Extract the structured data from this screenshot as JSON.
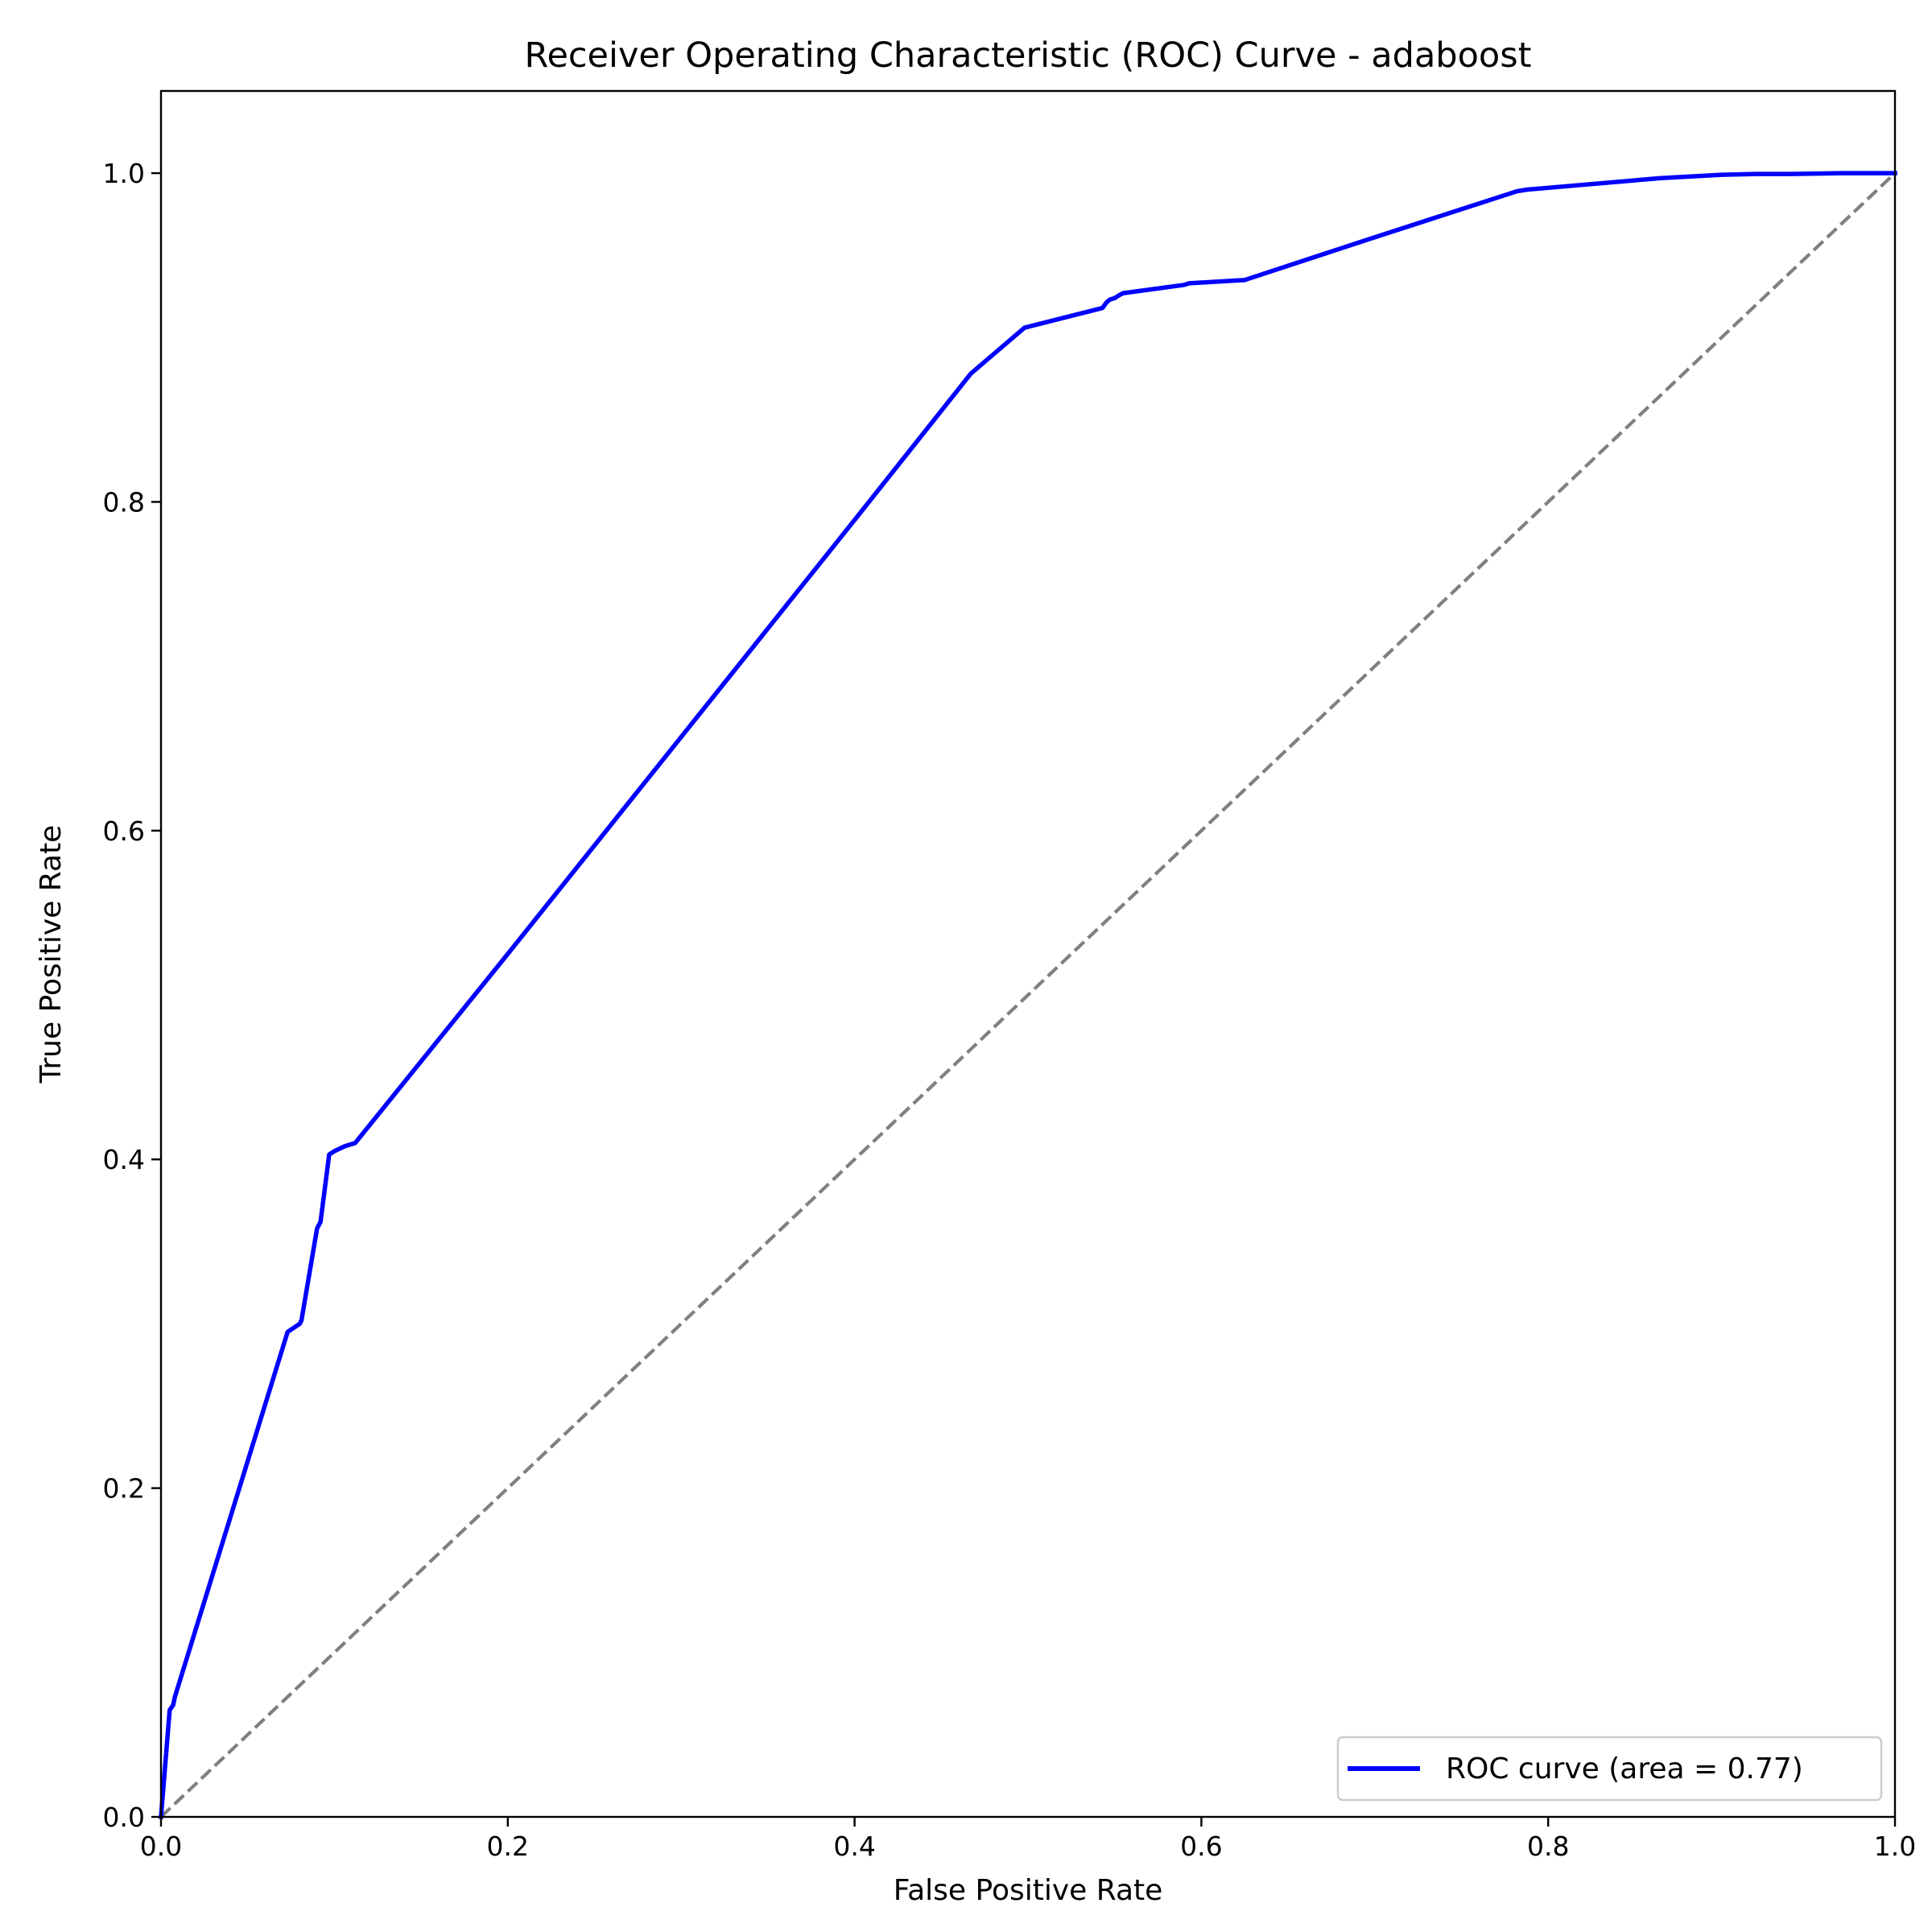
{
  "chart_data": {
    "type": "line",
    "title": "Receiver Operating Characteristic (ROC) Curve - adaboost",
    "xlabel": "False Positive Rate",
    "ylabel": "True Positive Rate",
    "xlim": [
      0.0,
      1.0
    ],
    "ylim": [
      0.0,
      1.05
    ],
    "xticks": [
      0.0,
      0.2,
      0.4,
      0.6,
      0.8,
      1.0
    ],
    "yticks": [
      0.0,
      0.2,
      0.4,
      0.6,
      0.8,
      1.0
    ],
    "xtick_labels": [
      "0.0",
      "0.2",
      "0.4",
      "0.6",
      "0.8",
      "1.0"
    ],
    "ytick_labels": [
      "0.0",
      "0.2",
      "0.4",
      "0.6",
      "0.8",
      "1.0"
    ],
    "grid": false,
    "legend_position": "lower-right",
    "series": [
      {
        "name": "ROC curve (area = 0.77)",
        "color": "#0000ff",
        "style": "solid",
        "x": [
          0.0,
          0.005,
          0.007,
          0.008,
          0.073,
          0.08,
          0.081,
          0.09,
          0.092,
          0.097,
          0.1,
          0.106,
          0.112,
          0.2,
          0.3,
          0.4,
          0.467,
          0.498,
          0.543,
          0.545,
          0.547,
          0.55,
          0.553,
          0.555,
          0.59,
          0.593,
          0.625,
          0.7,
          0.782,
          0.788,
          0.81,
          0.865,
          0.9,
          0.92,
          0.94,
          0.97,
          1.0
        ],
        "y": [
          0.0,
          0.065,
          0.068,
          0.073,
          0.295,
          0.3,
          0.302,
          0.358,
          0.362,
          0.403,
          0.405,
          0.408,
          0.41,
          0.525,
          0.657,
          0.789,
          0.878,
          0.906,
          0.918,
          0.921,
          0.923,
          0.924,
          0.926,
          0.927,
          0.932,
          0.933,
          0.935,
          0.961,
          0.989,
          0.99,
          0.992,
          0.997,
          0.999,
          0.9995,
          0.9995,
          1.0,
          1.0
        ]
      },
      {
        "name": "",
        "color": "#808080",
        "style": "dashed",
        "x": [
          0.0,
          1.0
        ],
        "y": [
          0.0,
          1.0
        ]
      }
    ]
  }
}
